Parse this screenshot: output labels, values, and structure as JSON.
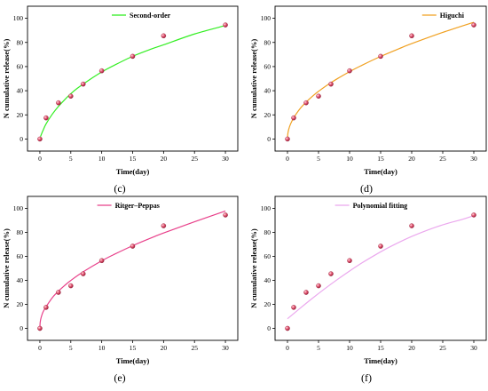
{
  "chart_data": [
    {
      "type": "scatter",
      "caption": "(c)",
      "xlabel": "Time(day)",
      "ylabel": "N cumulative release(%)",
      "xlim": [
        -2,
        32
      ],
      "ylim": [
        -10,
        110
      ],
      "xticks": [
        0,
        5,
        10,
        15,
        20,
        25,
        30
      ],
      "yticks": [
        0,
        20,
        40,
        60,
        80,
        100
      ],
      "grid": false,
      "legend_position": "top-left",
      "series": [
        {
          "role": "observed",
          "marker": "sphere",
          "x": [
            0,
            1,
            3,
            5,
            7,
            10,
            15,
            20,
            30
          ],
          "y": [
            0,
            17.5,
            30,
            35.5,
            45.5,
            56.5,
            68.5,
            85.5,
            94.5
          ]
        },
        {
          "name": "Second-order",
          "role": "fit",
          "color": "#33ee22",
          "x": [
            0.1,
            0.5,
            1,
            2,
            3,
            4,
            5,
            6,
            8,
            10,
            12,
            15,
            18,
            20,
            25,
            30
          ],
          "y": [
            2,
            7,
            12.5,
            20.5,
            27,
            32.5,
            37.5,
            41.8,
            49,
            55.5,
            61,
            68.5,
            74.5,
            78,
            87,
            94
          ]
        }
      ]
    },
    {
      "type": "scatter",
      "caption": "(d)",
      "xlabel": "Time(day)",
      "ylabel": "N cumulative release(%)",
      "xlim": [
        -2,
        32
      ],
      "ylim": [
        -10,
        110
      ],
      "xticks": [
        0,
        5,
        10,
        15,
        20,
        25,
        30
      ],
      "yticks": [
        0,
        20,
        40,
        60,
        80,
        100
      ],
      "grid": false,
      "legend_position": "top-right",
      "series": [
        {
          "role": "observed",
          "marker": "sphere",
          "x": [
            0,
            1,
            3,
            5,
            7,
            10,
            15,
            20,
            30
          ],
          "y": [
            0,
            17.5,
            30,
            35.5,
            45.5,
            56.5,
            68.5,
            85.5,
            94.5
          ]
        },
        {
          "name": "Higuchi",
          "role": "fit",
          "color": "#f0a020",
          "x": [
            0,
            0.05,
            0.2,
            0.5,
            1,
            2,
            3,
            4,
            5,
            7,
            10,
            12,
            15,
            18,
            20,
            25,
            30
          ],
          "y": [
            0,
            4,
            8,
            12.5,
            17.5,
            25,
            30.5,
            35.3,
            39.5,
            46.7,
            55.8,
            61.1,
            68.4,
            74.9,
            79,
            88.3,
            96.7
          ]
        }
      ]
    },
    {
      "type": "scatter",
      "caption": "(e)",
      "xlabel": "Time(day)",
      "ylabel": "N cumulative release(%)",
      "xlim": [
        -2,
        32
      ],
      "ylim": [
        -10,
        110
      ],
      "xticks": [
        0,
        5,
        10,
        15,
        20,
        25,
        30
      ],
      "yticks": [
        0,
        20,
        40,
        60,
        80,
        100
      ],
      "grid": false,
      "legend_position": "top-center",
      "series": [
        {
          "role": "observed",
          "marker": "sphere",
          "x": [
            0,
            1,
            3,
            5,
            7,
            10,
            15,
            20,
            30
          ],
          "y": [
            0,
            17.5,
            30,
            35.5,
            45.5,
            56.5,
            68.5,
            85.5,
            94.5
          ]
        },
        {
          "name": "Ritger–Peppas",
          "role": "fit",
          "color": "#e8408a",
          "x": [
            0,
            0.05,
            0.2,
            0.5,
            1,
            2,
            3,
            4,
            5,
            7,
            10,
            12,
            15,
            18,
            20,
            25,
            30
          ],
          "y": [
            0,
            5,
            9,
            13.5,
            18,
            25.5,
            31,
            35.7,
            39.9,
            47.1,
            56.3,
            61.6,
            68.9,
            75.4,
            79.5,
            88.8,
            97.8
          ]
        }
      ]
    },
    {
      "type": "scatter",
      "caption": "(f)",
      "xlabel": "Time(day)",
      "ylabel": "N cumulative release(%)",
      "xlim": [
        -2,
        32
      ],
      "ylim": [
        -10,
        110
      ],
      "xticks": [
        0,
        5,
        10,
        15,
        20,
        25,
        30
      ],
      "yticks": [
        0,
        20,
        40,
        60,
        80,
        100
      ],
      "grid": false,
      "legend_position": "top-center",
      "series": [
        {
          "role": "observed",
          "marker": "sphere",
          "x": [
            0,
            1,
            3,
            5,
            7,
            10,
            15,
            20,
            30
          ],
          "y": [
            0,
            17.5,
            30,
            35.5,
            45.5,
            56.5,
            68.5,
            85.5,
            94.5
          ]
        },
        {
          "name": "Polynomial fitting",
          "role": "fit",
          "color": "#eba8ee",
          "x": [
            0,
            2,
            4,
            6,
            8,
            10,
            12,
            14,
            16,
            18,
            20,
            22,
            24,
            26,
            28,
            30
          ],
          "y": [
            8,
            16.6,
            25,
            33,
            40.6,
            47.8,
            54.6,
            60.8,
            66.6,
            71.8,
            76.6,
            80.8,
            84.6,
            87.8,
            90.6,
            94
          ]
        }
      ]
    }
  ]
}
